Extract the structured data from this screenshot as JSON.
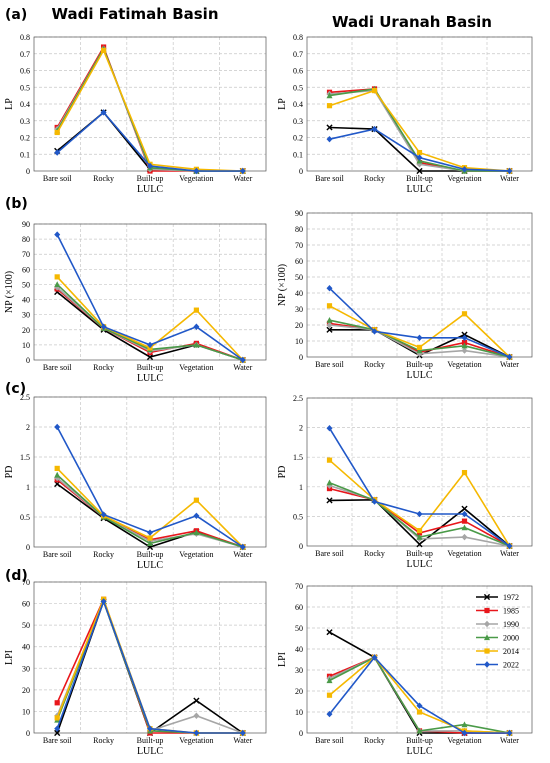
{
  "titles": {
    "left": "Wadi Fatimah Basin",
    "right": "Wadi Uranah Basin"
  },
  "rows": [
    "(a)",
    "(b)",
    "(c)",
    "(d)"
  ],
  "legend": [
    "1972",
    "1985",
    "1990",
    "2000",
    "2014",
    "2022"
  ],
  "colors": {
    "1972": "#000000",
    "1985": "#e8161b",
    "1990": "#a6a6a6",
    "2000": "#4a9a48",
    "2014": "#f5b800",
    "2022": "#2158c8"
  },
  "markers": {
    "1972": "x",
    "1985": "square",
    "1990": "diamond",
    "2000": "triangle",
    "2014": "square",
    "2022": "diamond"
  },
  "chart_data": [
    {
      "id": "a-fatimah",
      "type": "line",
      "categories": [
        "Bare soil",
        "Rocky",
        "Built-up",
        "Vegetation",
        "Water"
      ],
      "xlabel": "LULC",
      "ylabel": "LP",
      "ylim": [
        0,
        0.8
      ],
      "yticks": [
        "0",
        "0.1",
        "0.2",
        "0.3",
        "0.4",
        "0.5",
        "0.6",
        "0.7",
        "0.8"
      ],
      "series": [
        {
          "name": "1972",
          "values": [
            0.12,
            0.35,
            0.01,
            0.0,
            0.0
          ]
        },
        {
          "name": "1985",
          "values": [
            0.26,
            0.74,
            0.0,
            0.0,
            0.0
          ]
        },
        {
          "name": "1990",
          "values": [
            0.25,
            0.73,
            0.01,
            0.0,
            0.0
          ]
        },
        {
          "name": "2000",
          "values": [
            0.24,
            0.73,
            0.02,
            0.0,
            0.0
          ]
        },
        {
          "name": "2014",
          "values": [
            0.23,
            0.72,
            0.04,
            0.01,
            0.0
          ]
        },
        {
          "name": "2022",
          "values": [
            0.11,
            0.35,
            0.03,
            0.0,
            0.0
          ]
        }
      ]
    },
    {
      "id": "a-uranah",
      "type": "line",
      "categories": [
        "Bare soil",
        "Rocky",
        "Built-up",
        "Vegetation",
        "Water"
      ],
      "xlabel": "LULC",
      "ylabel": "LP",
      "ylim": [
        0,
        0.8
      ],
      "yticks": [
        "0",
        "0.1",
        "0.2",
        "0.3",
        "0.4",
        "0.5",
        "0.6",
        "0.7",
        "0.8"
      ],
      "series": [
        {
          "name": "1972",
          "values": [
            0.26,
            0.25,
            0.0,
            0.0,
            0.0
          ]
        },
        {
          "name": "1985",
          "values": [
            0.47,
            0.49,
            0.05,
            0.0,
            0.0
          ]
        },
        {
          "name": "1990",
          "values": [
            0.46,
            0.48,
            0.04,
            0.0,
            0.0
          ]
        },
        {
          "name": "2000",
          "values": [
            0.45,
            0.49,
            0.06,
            0.0,
            0.0
          ]
        },
        {
          "name": "2014",
          "values": [
            0.39,
            0.48,
            0.11,
            0.02,
            0.0
          ]
        },
        {
          "name": "2022",
          "values": [
            0.19,
            0.25,
            0.08,
            0.01,
            0.0
          ]
        }
      ]
    },
    {
      "id": "b-fatimah",
      "type": "line",
      "categories": [
        "Bare soil",
        "Rocky",
        "Built-up",
        "Vegetation",
        "Water"
      ],
      "xlabel": "LULC",
      "ylabel": "NP (×100)",
      "ylim": [
        0,
        90
      ],
      "yticks": [
        "0",
        "10",
        "20",
        "30",
        "40",
        "50",
        "60",
        "70",
        "80",
        "90"
      ],
      "series": [
        {
          "name": "1972",
          "values": [
            45,
            20,
            2,
            10,
            0
          ]
        },
        {
          "name": "1985",
          "values": [
            47,
            21,
            5,
            11,
            0
          ]
        },
        {
          "name": "1990",
          "values": [
            48,
            21,
            6,
            10,
            0
          ]
        },
        {
          "name": "2000",
          "values": [
            50,
            21,
            7,
            10,
            0
          ]
        },
        {
          "name": "2014",
          "values": [
            55,
            22,
            8,
            33,
            0
          ]
        },
        {
          "name": "2022",
          "values": [
            83,
            22,
            10,
            22,
            0
          ]
        }
      ]
    },
    {
      "id": "b-uranah",
      "type": "line",
      "categories": [
        "Bare soil",
        "Rocky",
        "Built-up",
        "Vegetation",
        "Water"
      ],
      "xlabel": "LULC",
      "ylabel": "NP (×100)",
      "ylim": [
        0,
        90
      ],
      "yticks": [
        "0",
        "10",
        "20",
        "30",
        "40",
        "50",
        "60",
        "70",
        "80",
        "90"
      ],
      "series": [
        {
          "name": "1972",
          "values": [
            17,
            17,
            1,
            14,
            0
          ]
        },
        {
          "name": "1985",
          "values": [
            21,
            17,
            3,
            9,
            0
          ]
        },
        {
          "name": "1990",
          "values": [
            20,
            17,
            2,
            4,
            0
          ]
        },
        {
          "name": "2000",
          "values": [
            23,
            17,
            4,
            7,
            0
          ]
        },
        {
          "name": "2014",
          "values": [
            32,
            17,
            6,
            27,
            0
          ]
        },
        {
          "name": "2022",
          "values": [
            43,
            16,
            12,
            12,
            0
          ]
        }
      ]
    },
    {
      "id": "c-fatimah",
      "type": "line",
      "categories": [
        "Bare soil",
        "Rocky",
        "Built-up",
        "Vegetation",
        "Water"
      ],
      "xlabel": "LULC",
      "ylabel": "PD",
      "ylim": [
        0,
        2.5
      ],
      "yticks": [
        "0",
        "0.5",
        "1",
        "1.5",
        "2",
        "2.5"
      ],
      "series": [
        {
          "name": "1972",
          "values": [
            1.05,
            0.48,
            0.0,
            0.25,
            0.0
          ]
        },
        {
          "name": "1985",
          "values": [
            1.12,
            0.5,
            0.12,
            0.27,
            0.0
          ]
        },
        {
          "name": "1990",
          "values": [
            1.15,
            0.5,
            0.1,
            0.22,
            0.0
          ]
        },
        {
          "name": "2000",
          "values": [
            1.2,
            0.5,
            0.06,
            0.24,
            0.0
          ]
        },
        {
          "name": "2014",
          "values": [
            1.31,
            0.52,
            0.15,
            0.78,
            0.0
          ]
        },
        {
          "name": "2022",
          "values": [
            2.0,
            0.54,
            0.24,
            0.52,
            0.0
          ]
        }
      ]
    },
    {
      "id": "c-uranah",
      "type": "line",
      "categories": [
        "Bare soil",
        "Rocky",
        "Built-up",
        "Vegetation",
        "Water"
      ],
      "xlabel": "LULC",
      "ylabel": "PD",
      "ylim": [
        0,
        2.5
      ],
      "yticks": [
        "0",
        "0.5",
        "1",
        "1.5",
        "2",
        "2.5"
      ],
      "series": [
        {
          "name": "1972",
          "values": [
            0.77,
            0.78,
            0.03,
            0.63,
            0.0
          ]
        },
        {
          "name": "1985",
          "values": [
            0.97,
            0.78,
            0.22,
            0.42,
            0.0
          ]
        },
        {
          "name": "1990",
          "values": [
            1.02,
            0.78,
            0.12,
            0.15,
            0.0
          ]
        },
        {
          "name": "2000",
          "values": [
            1.07,
            0.77,
            0.15,
            0.31,
            0.0
          ]
        },
        {
          "name": "2014",
          "values": [
            1.45,
            0.78,
            0.26,
            1.24,
            0.0
          ]
        },
        {
          "name": "2022",
          "values": [
            1.99,
            0.75,
            0.54,
            0.54,
            0.0
          ]
        }
      ]
    },
    {
      "id": "d-fatimah",
      "type": "line",
      "categories": [
        "Bare soil",
        "Rocky",
        "Built-up",
        "Vegetation",
        "Water"
      ],
      "xlabel": "LULC",
      "ylabel": "LPI",
      "ylim": [
        0,
        70
      ],
      "yticks": [
        "0",
        "10",
        "20",
        "30",
        "40",
        "50",
        "60",
        "70"
      ],
      "series": [
        {
          "name": "1972",
          "values": [
            0,
            61,
            0,
            15,
            0
          ]
        },
        {
          "name": "1985",
          "values": [
            14,
            62,
            0,
            0,
            0
          ]
        },
        {
          "name": "1990",
          "values": [
            8,
            61,
            1,
            8,
            0
          ]
        },
        {
          "name": "2000",
          "values": [
            6,
            61,
            1,
            0,
            0
          ]
        },
        {
          "name": "2014",
          "values": [
            7,
            62,
            2,
            0,
            0
          ]
        },
        {
          "name": "2022",
          "values": [
            2,
            61,
            2,
            0,
            0
          ]
        }
      ]
    },
    {
      "id": "d-uranah",
      "type": "line",
      "categories": [
        "Bare soil",
        "Rocky",
        "Built-up",
        "Vegetation",
        "Water"
      ],
      "xlabel": "LULC",
      "ylabel": "LPI",
      "ylim": [
        0,
        70
      ],
      "yticks": [
        "0",
        "10",
        "20",
        "30",
        "40",
        "50",
        "60",
        "70"
      ],
      "series": [
        {
          "name": "1972",
          "values": [
            48,
            36,
            0,
            0,
            0
          ]
        },
        {
          "name": "1985",
          "values": [
            27,
            36,
            1,
            0,
            0
          ]
        },
        {
          "name": "1990",
          "values": [
            26,
            36,
            1,
            1,
            0
          ]
        },
        {
          "name": "2000",
          "values": [
            25,
            36,
            1,
            4,
            0
          ]
        },
        {
          "name": "2014",
          "values": [
            18,
            36,
            10,
            1,
            0
          ]
        },
        {
          "name": "2022",
          "values": [
            9,
            36,
            13,
            0,
            0
          ]
        }
      ]
    }
  ]
}
